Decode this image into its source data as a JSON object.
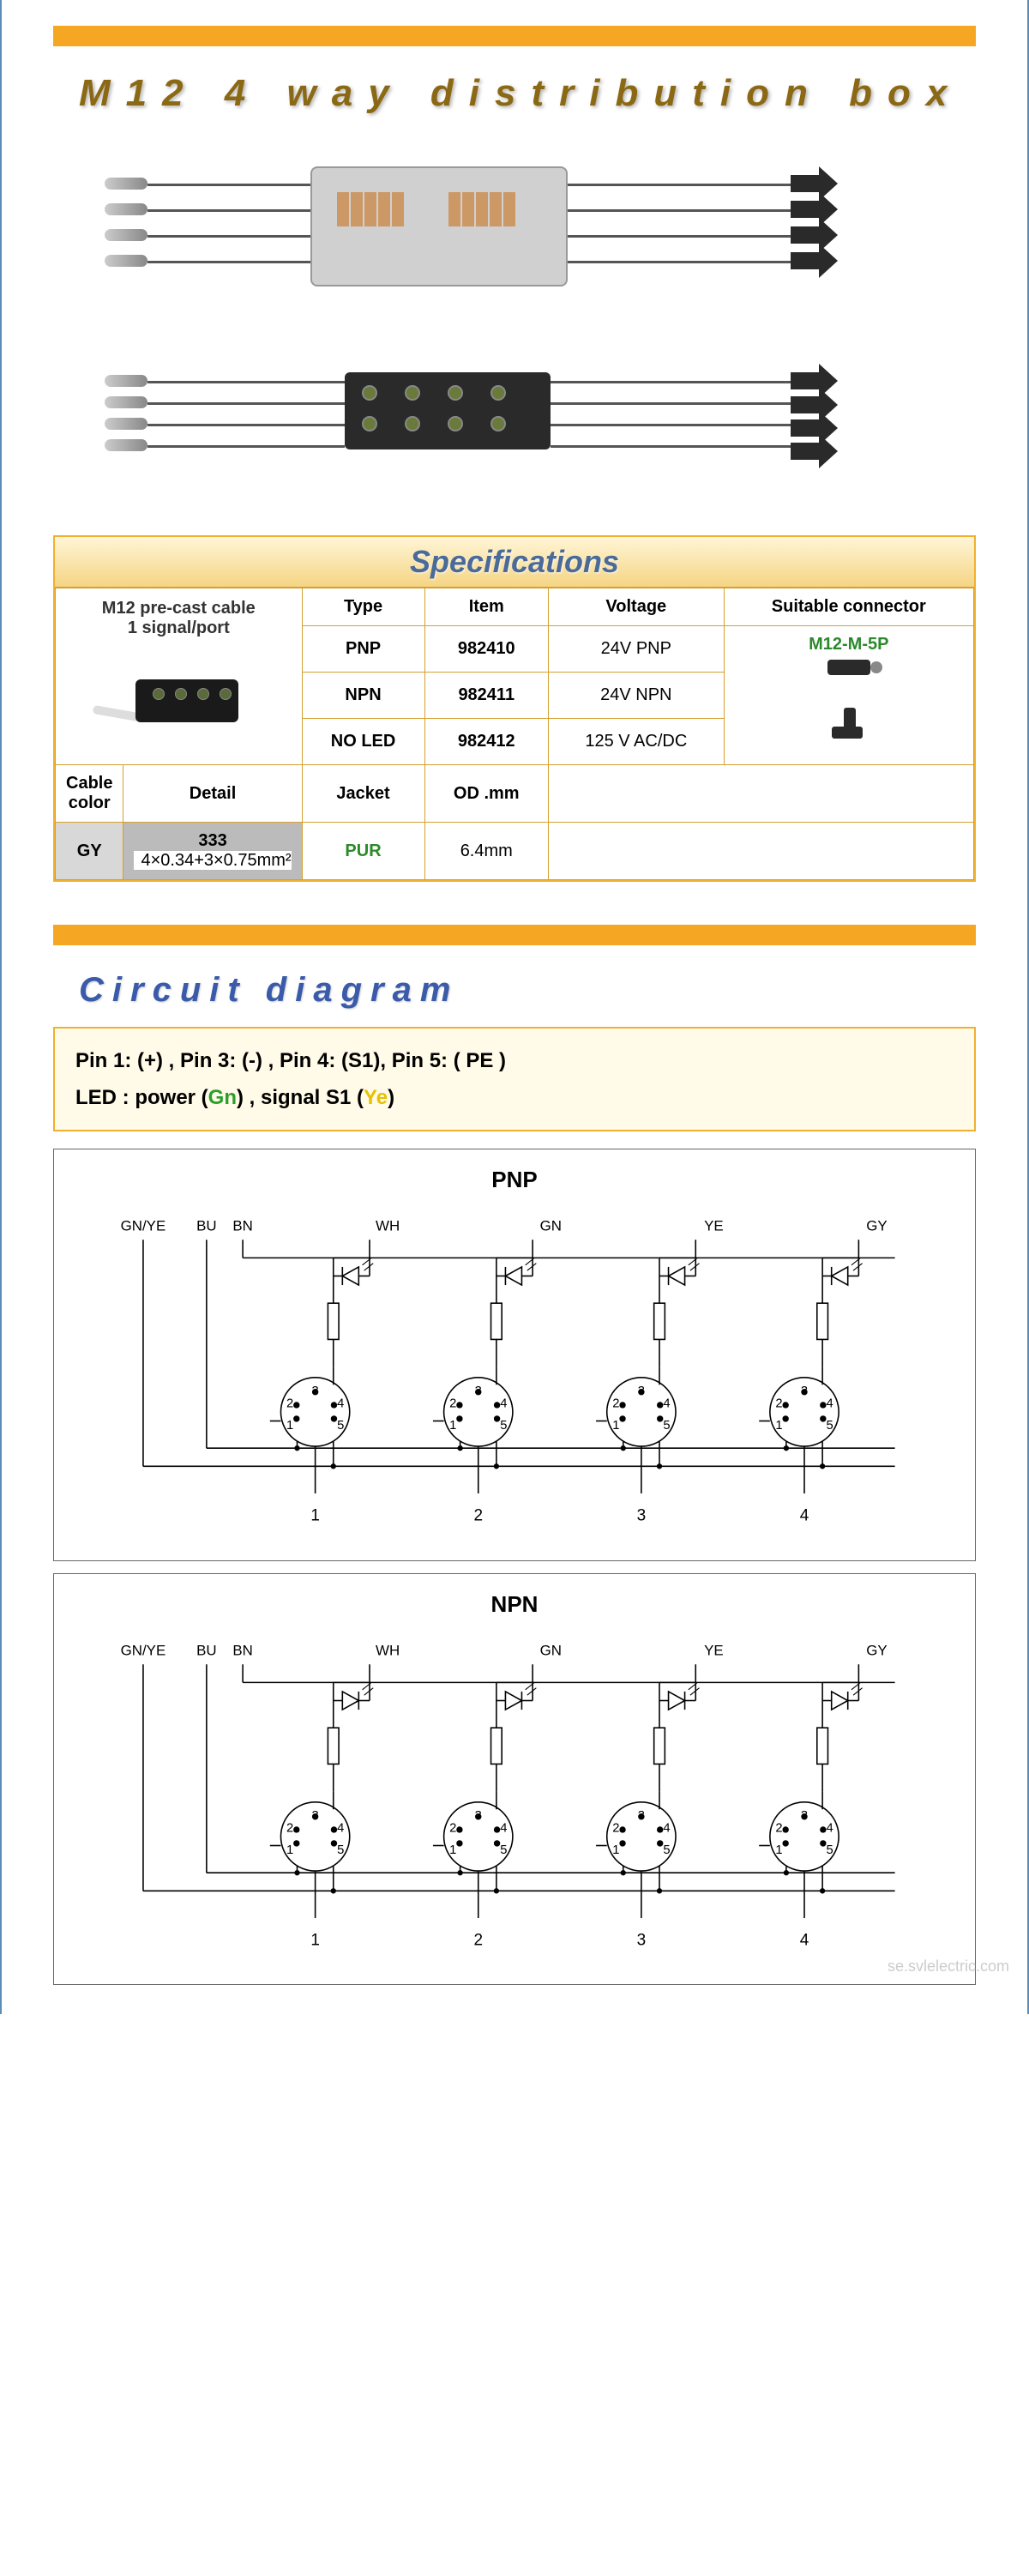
{
  "colors": {
    "orange_bar": "#f5a623",
    "table_border": "#d4a030",
    "title_brown": "#8b6914",
    "title_blue": "#3a5aaa",
    "spec_header_text": "#4a6a9a",
    "link_green": "#2a8a2a",
    "box_border": "#666666",
    "pin_bg": "#fffbe8",
    "page_border": "#5b8db8"
  },
  "main_title": "M12 4 way distribution box",
  "spec": {
    "header": "Specifications",
    "precast_line1": "M12 pre-cast cable",
    "precast_line2": "1 signal/port",
    "col_type": "Type",
    "col_item": "Item",
    "col_voltage": "Voltage",
    "col_connector": "Suitable connector",
    "connector_link": "M12-M-5P",
    "rows": [
      {
        "type": "PNP",
        "item": "982410",
        "voltage": "24V PNP"
      },
      {
        "type": "NPN",
        "item": "982411",
        "voltage": "24V NPN"
      },
      {
        "type": "NO LED",
        "item": "982412",
        "voltage": "125 V AC/DC"
      }
    ],
    "cable_color_h": "Cable color",
    "detail_h": "Detail",
    "jacket_h": "Jacket",
    "od_h": "OD .mm",
    "gy": "GY",
    "code": "333",
    "detail_val": "4×0.34+3×0.75mm²",
    "jacket_val": "PUR",
    "od_val": "6.4mm"
  },
  "circuit": {
    "section_title": "Circuit diagram",
    "pin_text_a": "Pin 1: (+) ,  Pin 3: (-) ,  Pin 4: (S1),  Pin 5: ( PE )",
    "led_label": "LED :  power  (",
    "gn": "Gn",
    "mid": ")  ,  signal S1  (",
    "ye": "Ye",
    "end": ")",
    "pnp_title": "PNP",
    "npn_title": "NPN",
    "wire_labels": [
      "GN/YE",
      "BU",
      "BN",
      "WH",
      "GN",
      "YE",
      "GY"
    ],
    "port_numbers": [
      "1",
      "2",
      "3",
      "4"
    ],
    "pin_ring": [
      "1",
      "2",
      "3",
      "4",
      "5"
    ]
  },
  "watermark": "se.svlelectric.com"
}
